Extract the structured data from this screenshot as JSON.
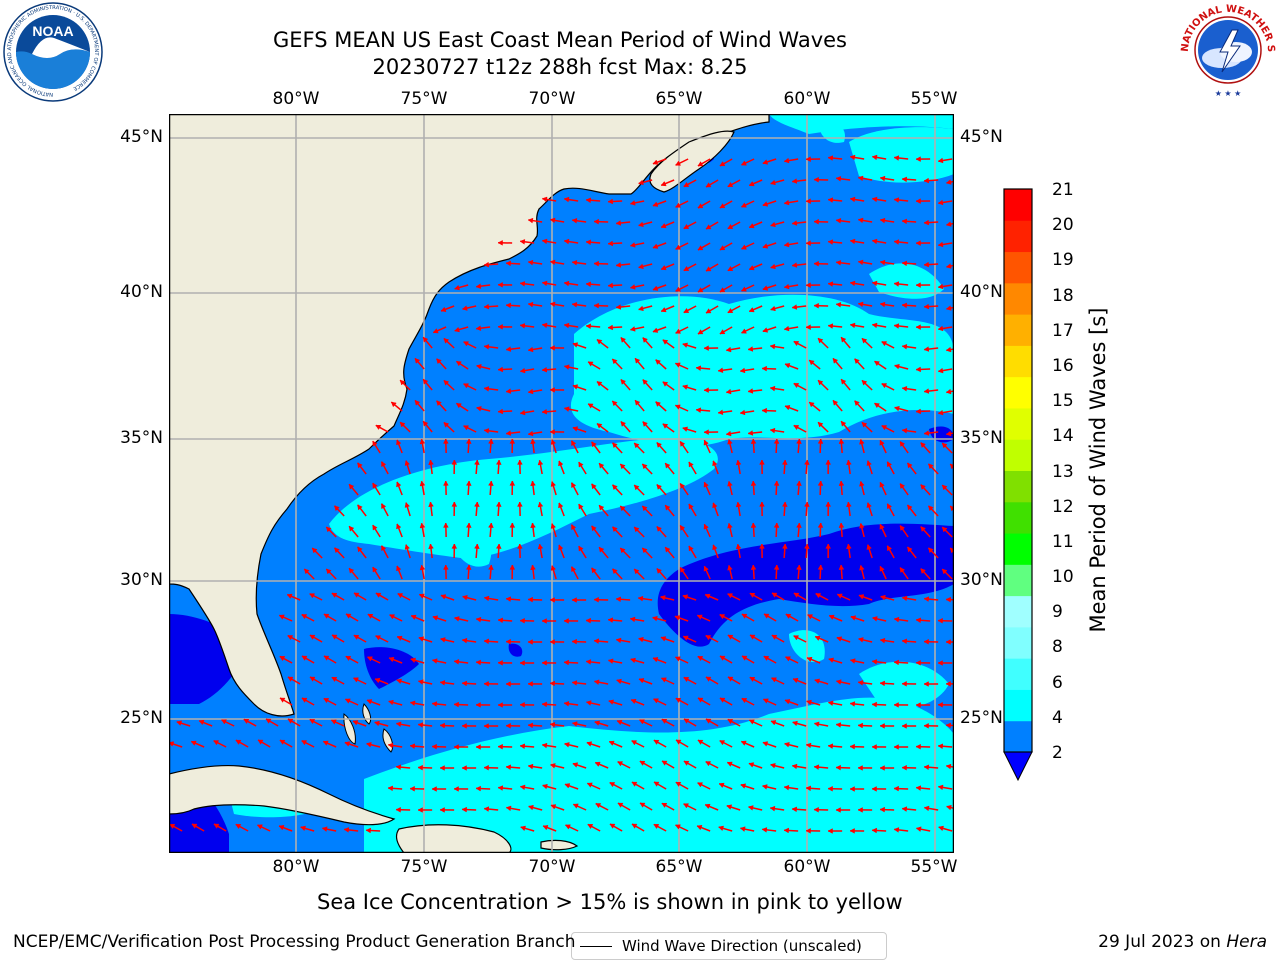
{
  "header": {
    "title_line1": "GEFS MEAN US East Coast Mean Period of Wind Waves",
    "title_line2": "20230727 t12z 288h fcst   Max: 8.25"
  },
  "logos": {
    "left": {
      "icon": "noaa-logo-icon",
      "text": "NOAA",
      "ring_text": "NATIONAL OCEANIC AND ATMOSPHERIC ADMINISTRATION · U.S. DEPARTMENT OF COMMERCE"
    },
    "right": {
      "icon": "nws-logo-icon",
      "ring_text": "NATIONAL WEATHER SERVICE"
    }
  },
  "map": {
    "lon_labels": [
      "80°W",
      "75°W",
      "70°W",
      "65°W",
      "60°W",
      "55°W"
    ],
    "lat_labels": [
      "45°N",
      "40°N",
      "35°N",
      "30°N",
      "25°N"
    ],
    "legend": "Wind Wave Direction (unscaled)",
    "colors": {
      "land": "#efeddc",
      "ocean_2_4": "#0080ff",
      "ocean_4_6": "#00ffff",
      "ocean_lt_2": "#0000ee",
      "arrows": "#ff0000",
      "grid": "#b0b0b0"
    }
  },
  "colorbar": {
    "label": "Mean Period of Wind Waves [s]",
    "ticks": [
      "21",
      "20",
      "19",
      "18",
      "17",
      "16",
      "15",
      "14",
      "13",
      "12",
      "11",
      "10",
      "9",
      "8",
      "6",
      "4",
      "2"
    ],
    "colors_bottom_to_top": [
      "#0080ff",
      "#00ffff",
      "#40ffff",
      "#80ffff",
      "#a0ffff",
      "#60ff80",
      "#00ff00",
      "#40e000",
      "#80e000",
      "#c0ff00",
      "#e0ff00",
      "#ffff00",
      "#ffdd00",
      "#ffb000",
      "#ff8800",
      "#ff5500",
      "#ff2200",
      "#ff0000"
    ],
    "extend_color": "#0000ff"
  },
  "notes": {
    "ice": "Sea Ice Concentration > 15% is shown in pink to yellow",
    "footer_left": "NCEP/EMC/Verification Post Processing Product Generation Branch",
    "footer_date": "29 Jul 2023 on",
    "footer_host": "Hera"
  }
}
